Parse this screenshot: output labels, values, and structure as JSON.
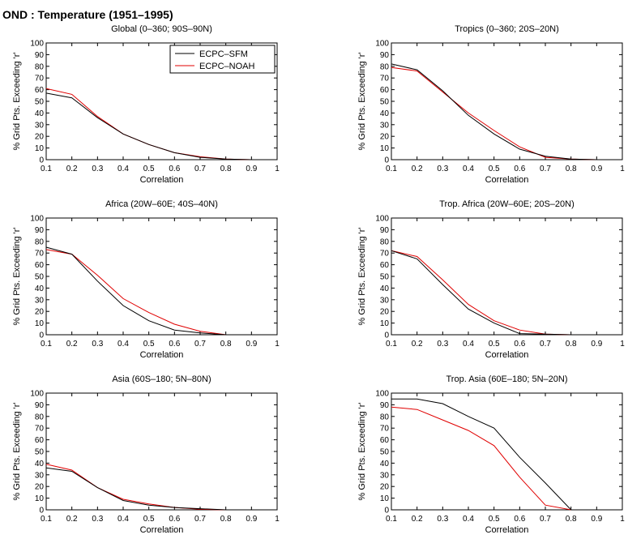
{
  "figure_title": "OND : Temperature (1951–1995)",
  "colors": {
    "ECPC-SFM": "#000000",
    "ECPC-NOAH": "#e00000"
  },
  "chart_data": [
    {
      "type": "line",
      "title": "Global (0–360; 90S–90N)",
      "xlabel": "Correlation",
      "ylabel": "% Grid Pts. Exceeding 'r'",
      "xlim": [
        0.1,
        1
      ],
      "ylim": [
        0,
        100
      ],
      "xticks": [
        "0.1",
        "0.2",
        "0.3",
        "0.4",
        "0.5",
        "0.6",
        "0.7",
        "0.8",
        "0.9",
        "1"
      ],
      "yticks": [
        "0",
        "10",
        "20",
        "30",
        "40",
        "50",
        "60",
        "70",
        "80",
        "90",
        "100"
      ],
      "legend": {
        "position": "top-right",
        "entries": [
          "ECPC–SFM",
          "ECPC–NOAH"
        ]
      },
      "x": [
        0.1,
        0.2,
        0.3,
        0.4,
        0.5,
        0.6,
        0.7,
        0.8,
        0.9,
        1.0
      ],
      "series": [
        {
          "name": "ECPC–SFM",
          "values": [
            57,
            53,
            36,
            22,
            13,
            6,
            2,
            0.5,
            0,
            0
          ]
        },
        {
          "name": "ECPC–NOAH",
          "values": [
            61,
            56,
            37,
            22,
            13,
            6,
            2.5,
            0.5,
            0,
            0
          ]
        }
      ]
    },
    {
      "type": "line",
      "title": "Tropics (0–360; 20S–20N)",
      "xlabel": "Correlation",
      "ylabel": "% Grid Pts. Exceeding 'r'",
      "xlim": [
        0.1,
        1
      ],
      "ylim": [
        0,
        100
      ],
      "xticks": [
        "0.1",
        "0.2",
        "0.3",
        "0.4",
        "0.5",
        "0.6",
        "0.7",
        "0.8",
        "0.9",
        "1"
      ],
      "yticks": [
        "0",
        "10",
        "20",
        "30",
        "40",
        "50",
        "60",
        "70",
        "80",
        "90",
        "100"
      ],
      "x": [
        0.1,
        0.2,
        0.3,
        0.4,
        0.5,
        0.6,
        0.7,
        0.8,
        0.9,
        1.0
      ],
      "series": [
        {
          "name": "ECPC–SFM",
          "values": [
            82,
            77,
            59,
            38,
            22,
            9,
            3,
            0.5,
            0,
            0
          ]
        },
        {
          "name": "ECPC–NOAH",
          "values": [
            79,
            76,
            58,
            40,
            25,
            11,
            2,
            0.5,
            0,
            0
          ]
        }
      ]
    },
    {
      "type": "line",
      "title": "Africa (20W–60E; 40S–40N)",
      "xlabel": "Correlation",
      "ylabel": "% Grid Pts. Exceeding 'r'",
      "xlim": [
        0.1,
        1
      ],
      "ylim": [
        0,
        100
      ],
      "xticks": [
        "0.1",
        "0.2",
        "0.3",
        "0.4",
        "0.5",
        "0.6",
        "0.7",
        "0.8",
        "0.9",
        "1"
      ],
      "yticks": [
        "0",
        "10",
        "20",
        "30",
        "40",
        "50",
        "60",
        "70",
        "80",
        "90",
        "100"
      ],
      "x": [
        0.1,
        0.2,
        0.3,
        0.4,
        0.5,
        0.6,
        0.7,
        0.8,
        0.9,
        1.0
      ],
      "series": [
        {
          "name": "ECPC–SFM",
          "values": [
            75,
            69,
            46,
            25,
            12,
            4,
            1.5,
            0,
            0,
            0
          ]
        },
        {
          "name": "ECPC–NOAH",
          "values": [
            73,
            69,
            51,
            31,
            19,
            9,
            3,
            0,
            0,
            0
          ]
        }
      ]
    },
    {
      "type": "line",
      "title": "Trop. Africa (20W–60E; 20S–20N)",
      "xlabel": "Correlation",
      "ylabel": "% Grid Pts. Exceeding 'r'",
      "xlim": [
        0.1,
        1
      ],
      "ylim": [
        0,
        100
      ],
      "xticks": [
        "0.1",
        "0.2",
        "0.3",
        "0.4",
        "0.5",
        "0.6",
        "0.7",
        "0.8",
        "0.9",
        "1"
      ],
      "yticks": [
        "0",
        "10",
        "20",
        "30",
        "40",
        "50",
        "60",
        "70",
        "80",
        "90",
        "100"
      ],
      "x": [
        0.1,
        0.2,
        0.3,
        0.4,
        0.5,
        0.6,
        0.7,
        0.8,
        0.9,
        1.0
      ],
      "series": [
        {
          "name": "ECPC–SFM",
          "values": [
            72,
            65,
            43,
            22,
            10,
            1,
            0.5,
            0,
            0,
            0
          ]
        },
        {
          "name": "ECPC–NOAH",
          "values": [
            72,
            67,
            47,
            26,
            12,
            4,
            0.5,
            0,
            0,
            0
          ]
        }
      ]
    },
    {
      "type": "line",
      "title": "Asia (60S–180; 5N–80N)",
      "xlabel": "Correlation",
      "ylabel": "% Grid Pts. Exceeding 'r'",
      "xlim": [
        0.1,
        1
      ],
      "ylim": [
        0,
        100
      ],
      "xticks": [
        "0.1",
        "0.2",
        "0.3",
        "0.4",
        "0.5",
        "0.6",
        "0.7",
        "0.8",
        "0.9",
        "1"
      ],
      "yticks": [
        "0",
        "10",
        "20",
        "30",
        "40",
        "50",
        "60",
        "70",
        "80",
        "90",
        "100"
      ],
      "x": [
        0.1,
        0.2,
        0.3,
        0.4,
        0.5,
        0.6,
        0.7,
        0.8,
        0.9,
        1.0
      ],
      "series": [
        {
          "name": "ECPC–SFM",
          "values": [
            36,
            33,
            19,
            8,
            4,
            2,
            1,
            0,
            0,
            0
          ]
        },
        {
          "name": "ECPC–NOAH",
          "values": [
            39,
            34,
            19,
            9,
            5,
            2,
            0.5,
            0,
            0,
            0
          ]
        }
      ]
    },
    {
      "type": "line",
      "title": "Trop. Asia (60E–180; 5N–20N)",
      "xlabel": "Correlation",
      "ylabel": "% Grid Pts. Exceeding 'r'",
      "xlim": [
        0.1,
        1
      ],
      "ylim": [
        0,
        100
      ],
      "xticks": [
        "0.1",
        "0.2",
        "0.3",
        "0.4",
        "0.5",
        "0.6",
        "0.7",
        "0.8",
        "0.9",
        "1"
      ],
      "yticks": [
        "0",
        "10",
        "20",
        "30",
        "40",
        "50",
        "60",
        "70",
        "80",
        "90",
        "100"
      ],
      "x": [
        0.1,
        0.2,
        0.3,
        0.4,
        0.5,
        0.6,
        0.7,
        0.8,
        0.9,
        1.0
      ],
      "series": [
        {
          "name": "ECPC–SFM",
          "values": [
            95,
            95,
            91,
            80,
            70,
            45,
            23,
            0,
            0,
            0
          ]
        },
        {
          "name": "ECPC–NOAH",
          "values": [
            88,
            86,
            77,
            68,
            55,
            28,
            4,
            0,
            0,
            0
          ]
        }
      ]
    }
  ]
}
